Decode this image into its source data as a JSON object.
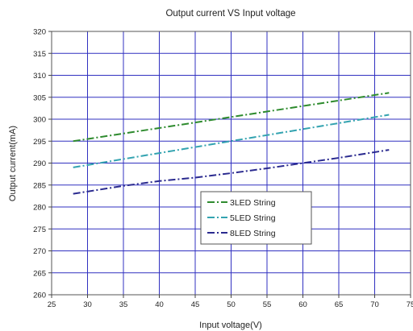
{
  "chart_data": {
    "type": "line",
    "title": "Output current VS Input voltage",
    "xlabel": "Input voltage(V)",
    "ylabel": "Output current(mA)",
    "xlim": [
      25,
      75
    ],
    "ylim": [
      260,
      320
    ],
    "x_ticks": [
      25,
      30,
      35,
      40,
      45,
      50,
      55,
      60,
      65,
      70,
      75
    ],
    "y_ticks": [
      260,
      265,
      270,
      275,
      280,
      285,
      290,
      295,
      300,
      305,
      310,
      315,
      320
    ],
    "grid": true,
    "legend_position": "center",
    "series": [
      {
        "name": "3LED String",
        "color": "#2e8b2e",
        "style": "dash-dot",
        "x": [
          28,
          72
        ],
        "y": [
          295,
          306
        ]
      },
      {
        "name": "5LED String",
        "color": "#33a3b0",
        "style": "dash-dot",
        "x": [
          28,
          72
        ],
        "y": [
          289,
          301
        ]
      },
      {
        "name": "8LED String",
        "color": "#2a2a8f",
        "style": "dash-dot",
        "x": [
          28,
          35,
          40,
          45,
          50,
          55,
          60,
          65,
          72
        ],
        "y": [
          283,
          284.8,
          285.9,
          286.7,
          287.7,
          288.8,
          290,
          291.2,
          293
        ]
      }
    ]
  }
}
